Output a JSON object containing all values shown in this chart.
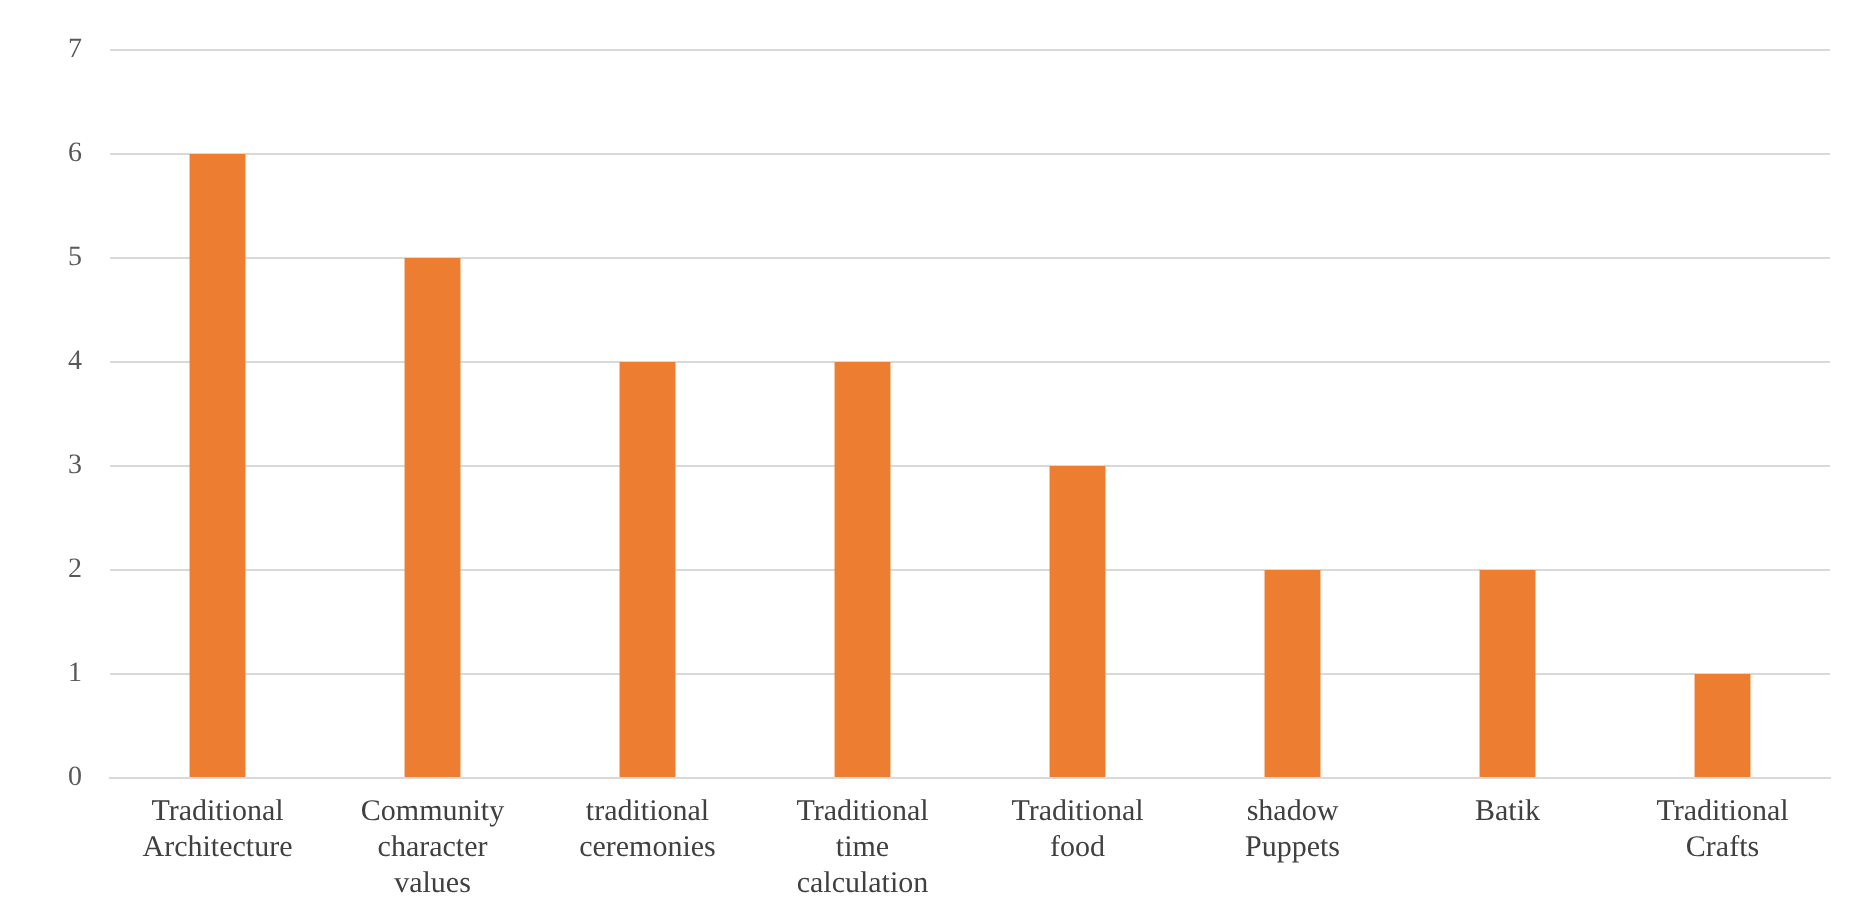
{
  "chart_data": {
    "type": "bar",
    "categories": [
      "Traditional Architecture",
      "Community character values",
      "traditional ceremonies",
      "Traditional time calculation",
      "Traditional food",
      "shadow Puppets",
      "Batik",
      "Traditional Crafts"
    ],
    "values": [
      6,
      5,
      4,
      4,
      3,
      2,
      2,
      1
    ],
    "color": "#ed7d31",
    "ylim": [
      0,
      7
    ],
    "yticks": [
      0,
      1,
      2,
      3,
      4,
      5,
      6,
      7
    ],
    "grid": "y",
    "legend": false
  }
}
